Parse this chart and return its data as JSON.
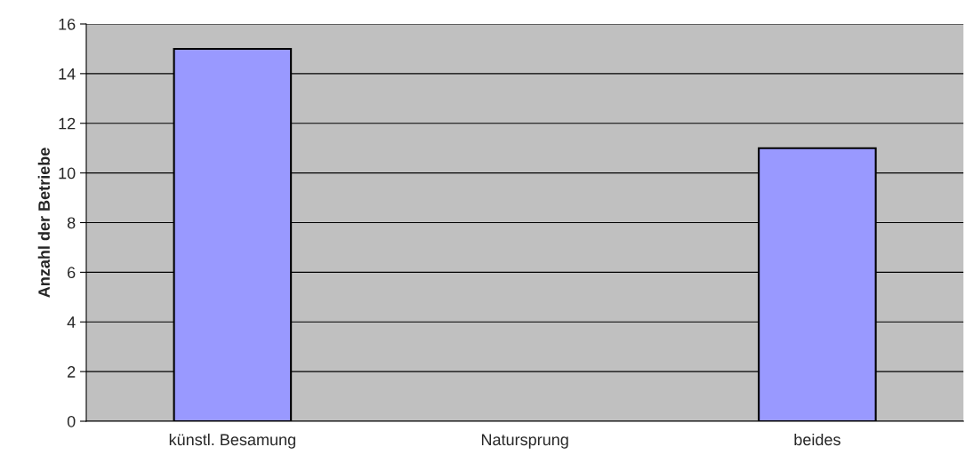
{
  "chart_data": {
    "type": "bar",
    "ylabel": "Anzahl der Betriebe",
    "categories": [
      "künstl. Besamung",
      "Natursprung",
      "beides"
    ],
    "values": [
      15,
      0,
      11
    ],
    "color": "#9999ff",
    "ylim": [
      0,
      16
    ],
    "yticks": [
      0,
      2,
      4,
      6,
      8,
      10,
      12,
      14,
      16
    ],
    "grid": "y",
    "legend": false
  }
}
